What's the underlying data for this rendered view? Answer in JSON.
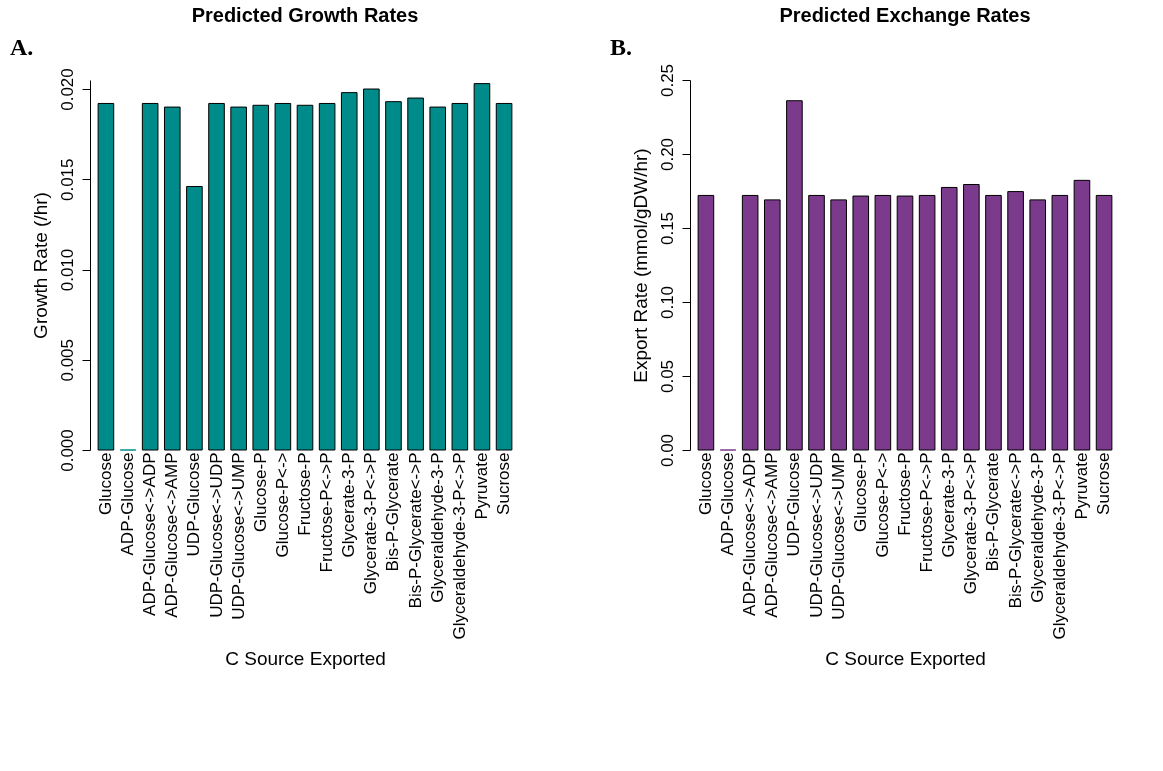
{
  "chart_data": [
    {
      "type": "bar",
      "title": "Predicted Growth Rates",
      "xlabel": "C Source Exported",
      "ylabel": "Growth Rate (/hr)",
      "annotations": [
        "A."
      ],
      "color": "#008b8b",
      "categories": [
        "Glucose",
        "ADP-Glucose",
        "ADP-Glucose<->ADP",
        "ADP-Glucose<->AMP",
        "UDP-Glucose",
        "UDP-Glucose<->UDP",
        "UDP-Glucose<->UMP",
        "Glucose-P",
        "Glucose-P<->",
        "Fructose-P",
        "Fructose-P<->P",
        "Glycerate-3-P",
        "Glycerate-3-P<->P",
        "Bis-P-Glycerate",
        "Bis-P-Glycerate<->P",
        "Glyceraldehyde-3-P",
        "Glyceraldehyde-3-P<->P",
        "Pyruvate",
        "Sucrose"
      ],
      "values": [
        0.0192,
        0,
        0.0192,
        0.019,
        0.0146,
        0.0192,
        0.019,
        0.0191,
        0.0192,
        0.0191,
        0.0192,
        0.0198,
        0.02,
        0.0193,
        0.0195,
        0.019,
        0.0192,
        0.0203,
        0.0192
      ],
      "ylim": [
        0,
        0.0205
      ],
      "yticks": [
        {
          "value": 0,
          "label": "0.000"
        },
        {
          "value": 0.005,
          "label": "0.005"
        },
        {
          "value": 0.01,
          "label": "0.010"
        },
        {
          "value": 0.015,
          "label": "0.015"
        },
        {
          "value": 0.02,
          "label": "0.020"
        }
      ]
    },
    {
      "type": "bar",
      "title": "Predicted Exchange Rates",
      "xlabel": "C Source Exported",
      "ylabel": "Export Rate (mmol/gDW/hr)",
      "annotations": [
        "B."
      ],
      "color": "#7b3a8c",
      "categories": [
        "Glucose",
        "ADP-Glucose",
        "ADP-Glucose<->ADP",
        "ADP-Glucose<->AMP",
        "UDP-Glucose",
        "UDP-Glucose<->UDP",
        "UDP-Glucose<->UMP",
        "Glucose-P",
        "Glucose-P<->",
        "Fructose-P",
        "Fructose-P<->P",
        "Glycerate-3-P",
        "Glycerate-3-P<->P",
        "Bis-P-Glycerate",
        "Bis-P-Glycerate<->P",
        "Glyceraldehyde-3-P",
        "Glyceraldehyde-3-P<->P",
        "Pyruvate",
        "Sucrose"
      ],
      "values": [
        0.172,
        0,
        0.172,
        0.169,
        0.236,
        0.172,
        0.169,
        0.1716,
        0.172,
        0.1716,
        0.172,
        0.1774,
        0.1794,
        0.172,
        0.1746,
        0.169,
        0.172,
        0.1822,
        0.172
      ],
      "ylim": [
        0,
        0.25
      ],
      "yticks": [
        {
          "value": 0,
          "label": "0.00"
        },
        {
          "value": 0.05,
          "label": "0.05"
        },
        {
          "value": 0.1,
          "label": "0.10"
        },
        {
          "value": 0.15,
          "label": "0.15"
        },
        {
          "value": 0.2,
          "label": "0.20"
        },
        {
          "value": 0.25,
          "label": "0.25"
        }
      ]
    }
  ]
}
